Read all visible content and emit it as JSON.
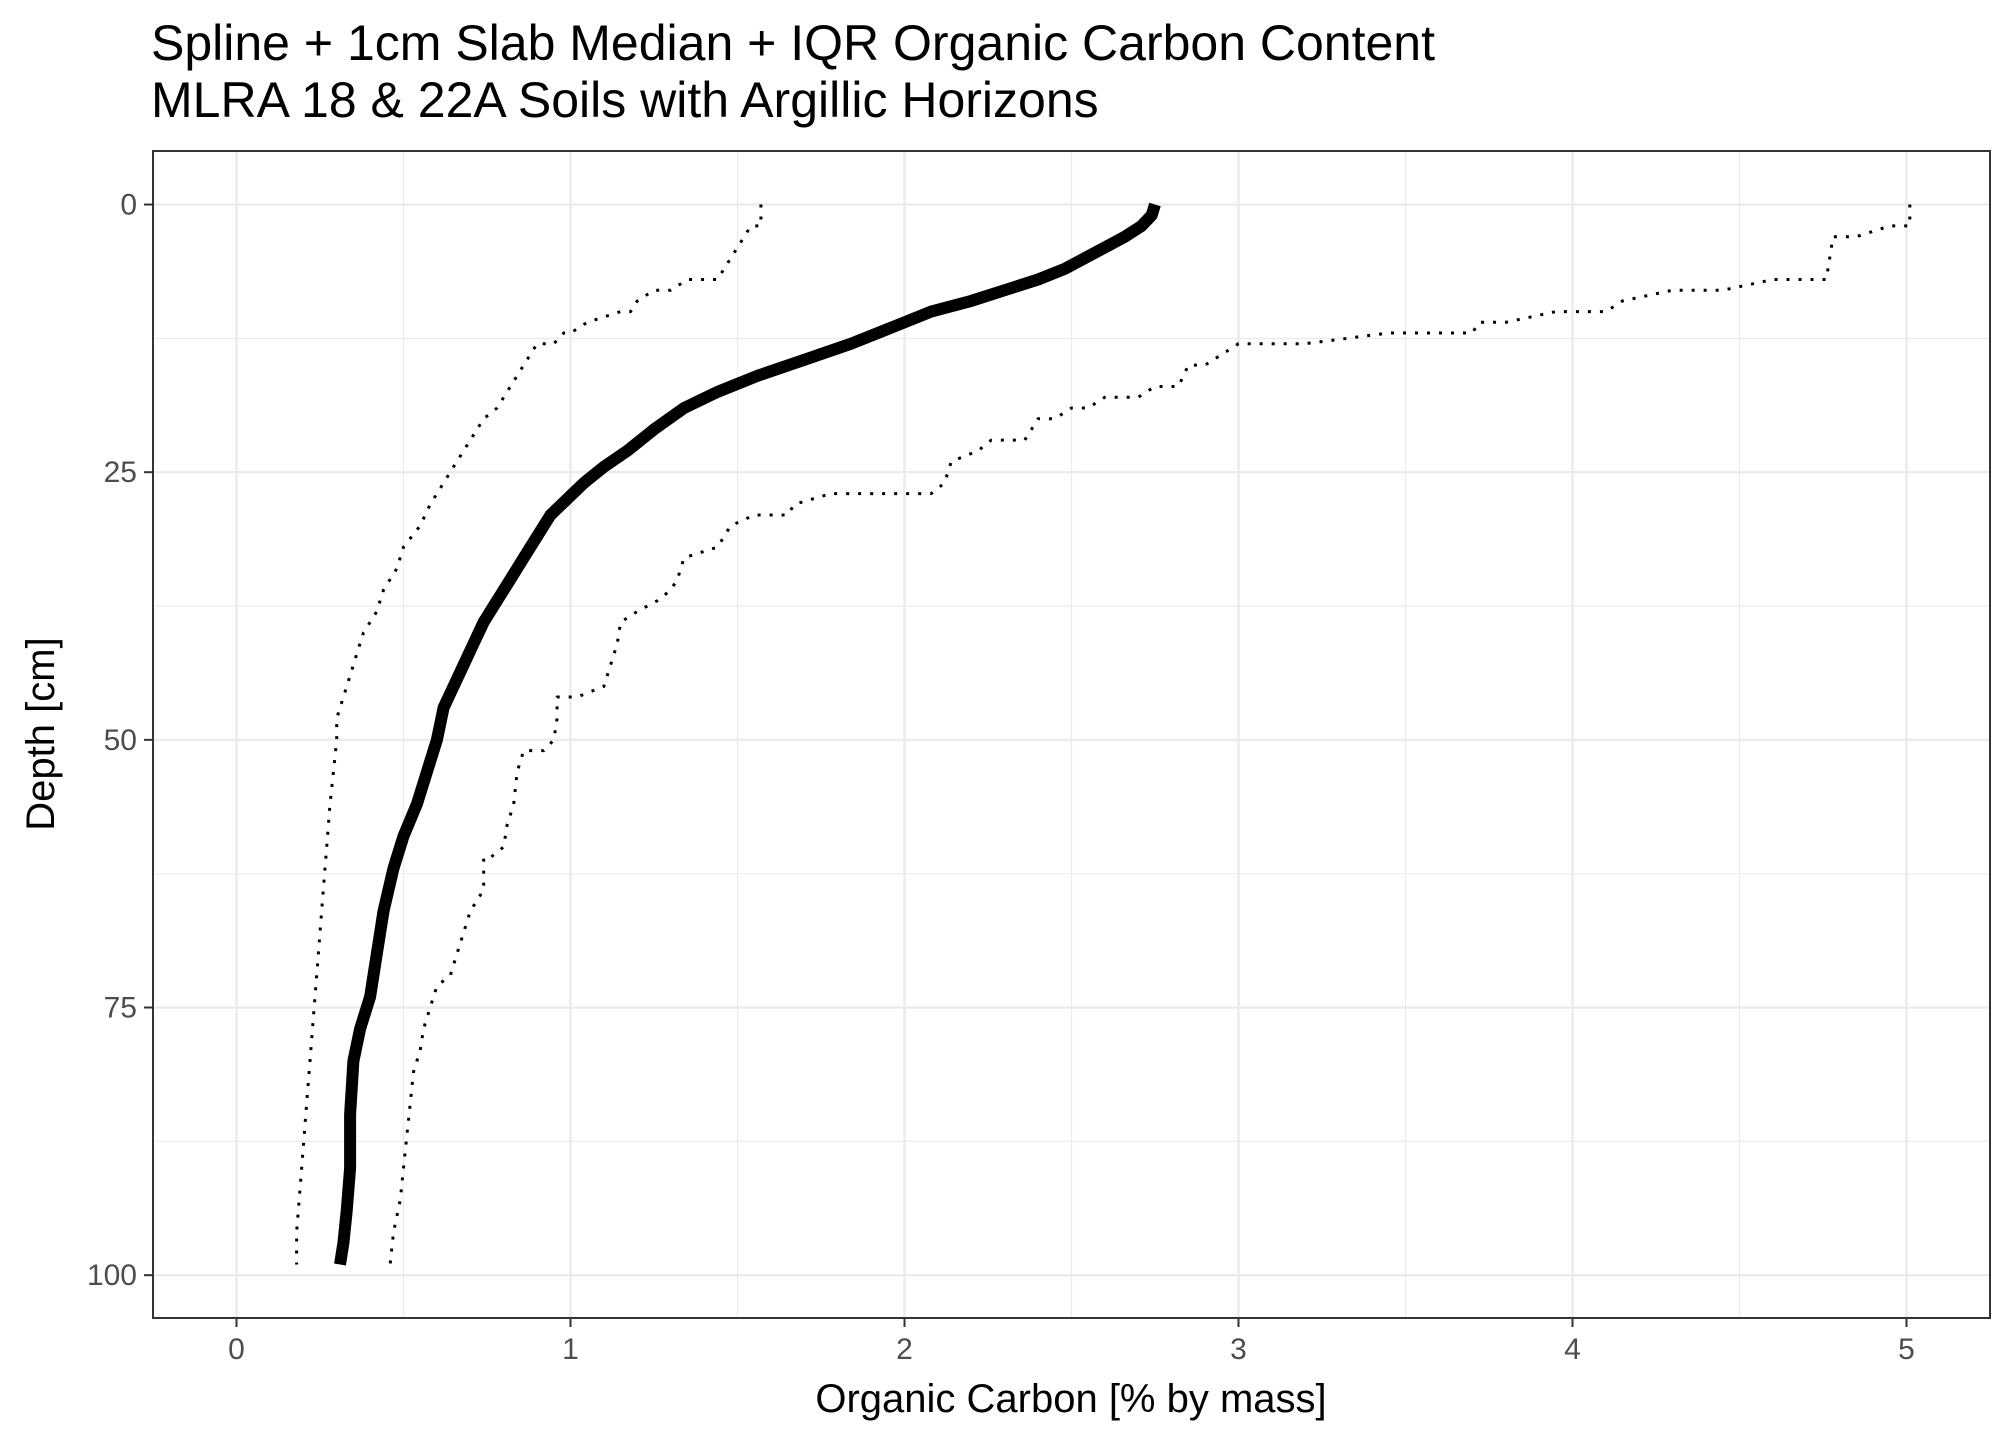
{
  "chart_data": {
    "type": "line",
    "title": "Spline + 1cm Slab Median + IQR Organic Carbon Content",
    "subtitle": "MLRA 18 & 22A Soils with Argillic Horizons",
    "xlabel": "Organic Carbon [% by mass]",
    "ylabel": "Depth [cm]",
    "xlim": [
      -0.25,
      5.25
    ],
    "ylim": [
      -5,
      104
    ],
    "y_reversed": true,
    "grid": true,
    "x_ticks": [
      "0",
      "1",
      "2",
      "3",
      "4",
      "5"
    ],
    "y_ticks": [
      "0",
      "25",
      "50",
      "75",
      "100"
    ],
    "series": [
      {
        "role": "median",
        "style": "thick-solid",
        "points": [
          [
            2.75,
            0
          ],
          [
            2.74,
            1
          ],
          [
            2.71,
            2
          ],
          [
            2.66,
            3
          ],
          [
            2.6,
            4
          ],
          [
            2.54,
            5
          ],
          [
            2.48,
            6
          ],
          [
            2.4,
            7
          ],
          [
            2.3,
            8
          ],
          [
            2.2,
            9
          ],
          [
            2.08,
            10
          ],
          [
            1.96,
            11.5
          ],
          [
            1.84,
            13
          ],
          [
            1.7,
            14.5
          ],
          [
            1.56,
            16
          ],
          [
            1.44,
            17.5
          ],
          [
            1.34,
            19
          ],
          [
            1.25,
            21
          ],
          [
            1.17,
            23
          ],
          [
            1.1,
            24.5
          ],
          [
            1.04,
            26
          ],
          [
            0.99,
            27.5
          ],
          [
            0.94,
            29
          ],
          [
            0.9,
            31
          ],
          [
            0.86,
            33
          ],
          [
            0.82,
            35
          ],
          [
            0.78,
            37
          ],
          [
            0.74,
            39
          ],
          [
            0.71,
            41
          ],
          [
            0.68,
            43
          ],
          [
            0.65,
            45
          ],
          [
            0.62,
            47
          ],
          [
            0.6,
            50
          ],
          [
            0.57,
            53
          ],
          [
            0.54,
            56
          ],
          [
            0.5,
            59
          ],
          [
            0.47,
            62
          ],
          [
            0.44,
            66
          ],
          [
            0.42,
            70
          ],
          [
            0.4,
            74
          ],
          [
            0.37,
            77
          ],
          [
            0.35,
            80
          ],
          [
            0.34,
            85
          ],
          [
            0.34,
            90
          ],
          [
            0.33,
            94
          ],
          [
            0.32,
            97
          ],
          [
            0.31,
            99
          ]
        ]
      },
      {
        "role": "q25",
        "style": "dotted",
        "points": [
          [
            1.57,
            0
          ],
          [
            1.57,
            2
          ],
          [
            1.54,
            2
          ],
          [
            1.52,
            3
          ],
          [
            1.5,
            4
          ],
          [
            1.48,
            5
          ],
          [
            1.46,
            6
          ],
          [
            1.44,
            7
          ],
          [
            1.35,
            7
          ],
          [
            1.3,
            8
          ],
          [
            1.25,
            8
          ],
          [
            1.2,
            9
          ],
          [
            1.18,
            10
          ],
          [
            1.15,
            10
          ],
          [
            1.05,
            11
          ],
          [
            1.0,
            12
          ],
          [
            0.98,
            12
          ],
          [
            0.95,
            13
          ],
          [
            0.9,
            13
          ],
          [
            0.86,
            15
          ],
          [
            0.82,
            17
          ],
          [
            0.78,
            19
          ],
          [
            0.74,
            20
          ],
          [
            0.7,
            22
          ],
          [
            0.66,
            24
          ],
          [
            0.62,
            26
          ],
          [
            0.58,
            28
          ],
          [
            0.55,
            30
          ],
          [
            0.5,
            32
          ],
          [
            0.48,
            34
          ],
          [
            0.44,
            36
          ],
          [
            0.42,
            38
          ],
          [
            0.38,
            40
          ],
          [
            0.36,
            42
          ],
          [
            0.34,
            44
          ],
          [
            0.32,
            46
          ],
          [
            0.3,
            48
          ],
          [
            0.3,
            50
          ],
          [
            0.29,
            53
          ],
          [
            0.28,
            56
          ],
          [
            0.27,
            60
          ],
          [
            0.26,
            64
          ],
          [
            0.25,
            68
          ],
          [
            0.24,
            72
          ],
          [
            0.23,
            76
          ],
          [
            0.22,
            80
          ],
          [
            0.21,
            84
          ],
          [
            0.2,
            88
          ],
          [
            0.19,
            92
          ],
          [
            0.18,
            96
          ],
          [
            0.18,
            99
          ]
        ]
      },
      {
        "role": "q75",
        "style": "dotted",
        "points": [
          [
            5.01,
            0
          ],
          [
            5.01,
            2
          ],
          [
            4.95,
            2
          ],
          [
            4.85,
            3
          ],
          [
            4.78,
            3
          ],
          [
            4.77,
            5
          ],
          [
            4.76,
            7
          ],
          [
            4.7,
            7
          ],
          [
            4.6,
            7
          ],
          [
            4.45,
            8
          ],
          [
            4.3,
            8
          ],
          [
            4.15,
            9
          ],
          [
            4.1,
            10
          ],
          [
            3.95,
            10
          ],
          [
            3.8,
            11
          ],
          [
            3.72,
            11
          ],
          [
            3.7,
            12
          ],
          [
            3.45,
            12
          ],
          [
            3.2,
            13
          ],
          [
            3.0,
            13
          ],
          [
            2.95,
            14
          ],
          [
            2.9,
            15
          ],
          [
            2.85,
            15
          ],
          [
            2.82,
            17
          ],
          [
            2.75,
            17
          ],
          [
            2.7,
            18
          ],
          [
            2.6,
            18
          ],
          [
            2.55,
            19
          ],
          [
            2.5,
            19
          ],
          [
            2.45,
            20
          ],
          [
            2.4,
            20
          ],
          [
            2.36,
            22
          ],
          [
            2.26,
            22
          ],
          [
            2.22,
            23
          ],
          [
            2.14,
            24
          ],
          [
            2.12,
            26
          ],
          [
            2.08,
            27
          ],
          [
            1.78,
            27
          ],
          [
            1.67,
            28
          ],
          [
            1.65,
            29
          ],
          [
            1.55,
            29
          ],
          [
            1.48,
            30
          ],
          [
            1.46,
            31
          ],
          [
            1.44,
            32
          ],
          [
            1.34,
            33
          ],
          [
            1.32,
            35
          ],
          [
            1.3,
            36
          ],
          [
            1.26,
            37
          ],
          [
            1.2,
            38
          ],
          [
            1.15,
            39
          ],
          [
            1.14,
            41
          ],
          [
            1.12,
            43
          ],
          [
            1.1,
            45
          ],
          [
            1.02,
            46
          ],
          [
            0.96,
            46
          ],
          [
            0.96,
            48
          ],
          [
            0.95,
            50
          ],
          [
            0.92,
            51
          ],
          [
            0.86,
            51
          ],
          [
            0.84,
            53
          ],
          [
            0.83,
            56
          ],
          [
            0.81,
            58
          ],
          [
            0.8,
            60
          ],
          [
            0.76,
            61
          ],
          [
            0.74,
            61
          ],
          [
            0.74,
            64
          ],
          [
            0.72,
            65
          ],
          [
            0.7,
            66
          ],
          [
            0.68,
            68
          ],
          [
            0.66,
            70
          ],
          [
            0.64,
            72
          ],
          [
            0.6,
            73
          ],
          [
            0.58,
            75
          ],
          [
            0.56,
            77
          ],
          [
            0.55,
            79
          ],
          [
            0.53,
            81
          ],
          [
            0.52,
            84
          ],
          [
            0.51,
            87
          ],
          [
            0.5,
            90
          ],
          [
            0.49,
            93
          ],
          [
            0.47,
            96
          ],
          [
            0.46,
            99
          ]
        ]
      }
    ]
  }
}
